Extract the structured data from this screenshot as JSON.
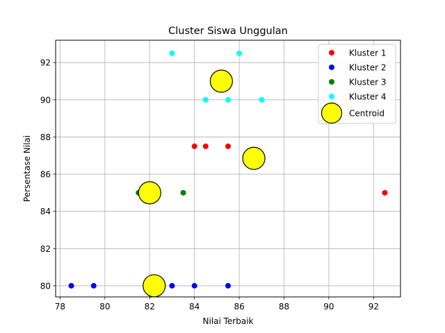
{
  "chart_data": {
    "type": "scatter",
    "title": "Cluster Siswa Unggulan",
    "xlabel": "Nilai Terbaik",
    "ylabel": "Persentase Nilai",
    "xlim": [
      77.8,
      93.2
    ],
    "ylim": [
      79.4,
      93.2
    ],
    "xticks": [
      78,
      80,
      82,
      84,
      86,
      88,
      90,
      92
    ],
    "yticks": [
      80,
      82,
      84,
      86,
      88,
      90,
      92
    ],
    "grid": true,
    "legend_position": "top-right",
    "series": [
      {
        "name": "Kluster 1",
        "color": "#ff0000",
        "marker": "dot",
        "points": [
          [
            84,
            87.5
          ],
          [
            84.5,
            87.5
          ],
          [
            85.5,
            87.5
          ],
          [
            92.5,
            85
          ]
        ]
      },
      {
        "name": "Kluster 2",
        "color": "#0000ff",
        "marker": "dot",
        "points": [
          [
            78.5,
            80
          ],
          [
            79.5,
            80
          ],
          [
            83,
            80
          ],
          [
            84,
            80
          ],
          [
            85.5,
            80
          ]
        ]
      },
      {
        "name": "Kluster 3",
        "color": "#008000",
        "marker": "dot",
        "points": [
          [
            81.5,
            85
          ],
          [
            83.5,
            85
          ]
        ]
      },
      {
        "name": "Kluster 4",
        "color": "#00ffff",
        "marker": "dot",
        "points": [
          [
            83,
            92.5
          ],
          [
            86,
            92.5
          ],
          [
            84.5,
            90
          ],
          [
            85.5,
            90
          ],
          [
            87,
            90
          ]
        ]
      },
      {
        "name": "Centroid",
        "color": "#ffff00",
        "edgecolor": "#000000",
        "marker": "large-circle",
        "points": [
          [
            85.2,
            91
          ],
          [
            86.65,
            86.85
          ],
          [
            82,
            85
          ],
          [
            82.2,
            80
          ]
        ]
      }
    ]
  }
}
